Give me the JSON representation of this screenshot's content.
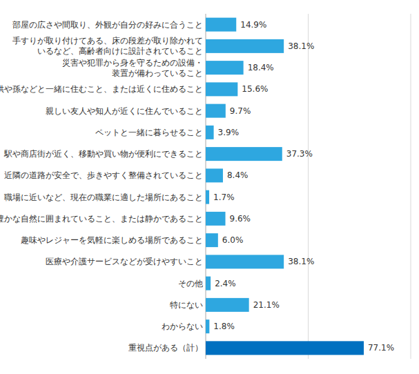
{
  "chart_data": {
    "type": "bar",
    "orientation": "horizontal",
    "categories": [
      "部屋の広さや間取り、外観が自分の好みに合うこと",
      "手すりが取り付けてある、床の段差が取り除かれて\nいるなど、高齢者向けに設計されていること",
      "災害や犯罪から身を守るための設備・\n装置が備わっていること",
      "子供や孫などと一緒に住むこと、または近くに住めること",
      "親しい友人や知人が近くに住んでいること",
      "ペットと一緒に暮らせること",
      "駅や商店街が近く、移動や買い物が便利にできること",
      "近隣の道路が安全で、歩きやすく整備されていること",
      "職場に近いなど、現在の職業に適した場所にあること",
      "豊かな自然に囲まれていること、または静かであること",
      "趣味やレジャーを気軽に楽しめる場所であること",
      "医療や介護サービスなどが受けやすいこと",
      "その他",
      "特にない",
      "わからない",
      "重視点がある（計）"
    ],
    "values": [
      14.9,
      38.1,
      18.4,
      15.6,
      9.7,
      3.9,
      37.3,
      8.4,
      1.7,
      9.6,
      6.0,
      38.1,
      2.4,
      21.1,
      1.8,
      77.1
    ],
    "value_labels": [
      "14.9%",
      "38.1%",
      "18.4%",
      "15.6%",
      "9.7%",
      "3.9%",
      "37.3%",
      "8.4%",
      "1.7%",
      "9.6%",
      "6.0%",
      "38.1%",
      "2.4%",
      "21.1%",
      "1.8%",
      "77.1%"
    ],
    "colors": [
      "#2ea7e0",
      "#2ea7e0",
      "#2ea7e0",
      "#2ea7e0",
      "#2ea7e0",
      "#2ea7e0",
      "#2ea7e0",
      "#2ea7e0",
      "#2ea7e0",
      "#2ea7e0",
      "#2ea7e0",
      "#2ea7e0",
      "#2ea7e0",
      "#2ea7e0",
      "#2ea7e0",
      "#0070c0"
    ],
    "xlim": [
      0,
      100
    ],
    "xticks": [
      0,
      50,
      100
    ],
    "grid": true,
    "data_labels": true,
    "tick_labels": false
  }
}
